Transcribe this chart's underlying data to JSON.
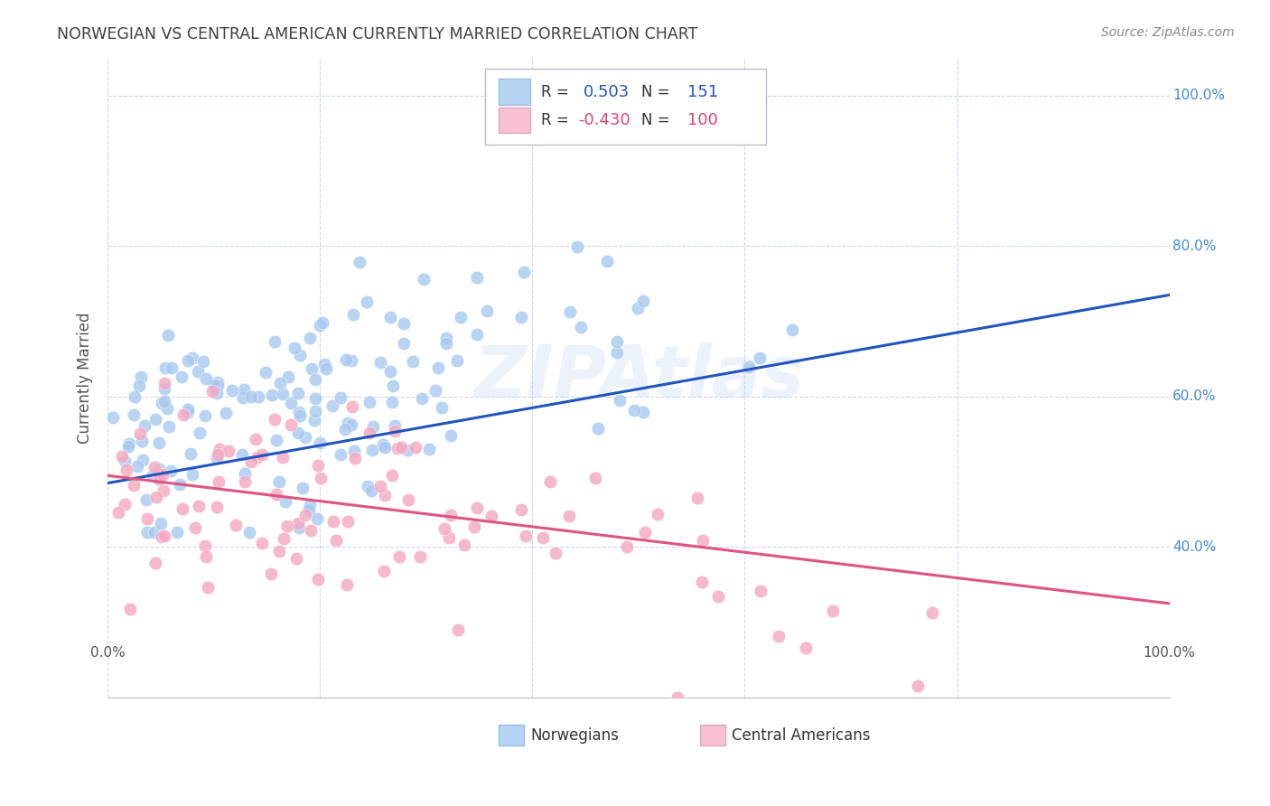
{
  "title": "NORWEGIAN VS CENTRAL AMERICAN CURRENTLY MARRIED CORRELATION CHART",
  "source": "Source: ZipAtlas.com",
  "ylabel": "Currently Married",
  "xlim": [
    0.0,
    1.0
  ],
  "ylim": [
    0.28,
    1.05
  ],
  "blue_R": 0.503,
  "blue_N": 151,
  "pink_R": -0.43,
  "pink_N": 100,
  "blue_color": "#a8c8f0",
  "pink_color": "#f4a8c0",
  "blue_line_color": "#2255bb",
  "pink_line_color": "#dd5580",
  "blue_legend_fill": "#b8d4f4",
  "pink_legend_fill": "#f8c0d0",
  "background_color": "#ffffff",
  "grid_color": "#ccd8ee",
  "title_color": "#404040",
  "source_color": "#888888",
  "watermark": "ZIPAtlas",
  "blue_trend_x": [
    0.0,
    1.0
  ],
  "blue_trend_y": [
    0.485,
    0.735
  ],
  "pink_trend_x": [
    0.0,
    1.0
  ],
  "pink_trend_y": [
    0.495,
    0.325
  ],
  "ytick_positions": [
    0.4,
    0.6,
    0.8,
    1.0
  ],
  "ytick_labels": [
    "40.0%",
    "60.0%",
    "80.0%",
    "100.0%"
  ],
  "xtick_positions": [
    0.0,
    1.0
  ],
  "xtick_labels": [
    "0.0%",
    "100.0%"
  ]
}
